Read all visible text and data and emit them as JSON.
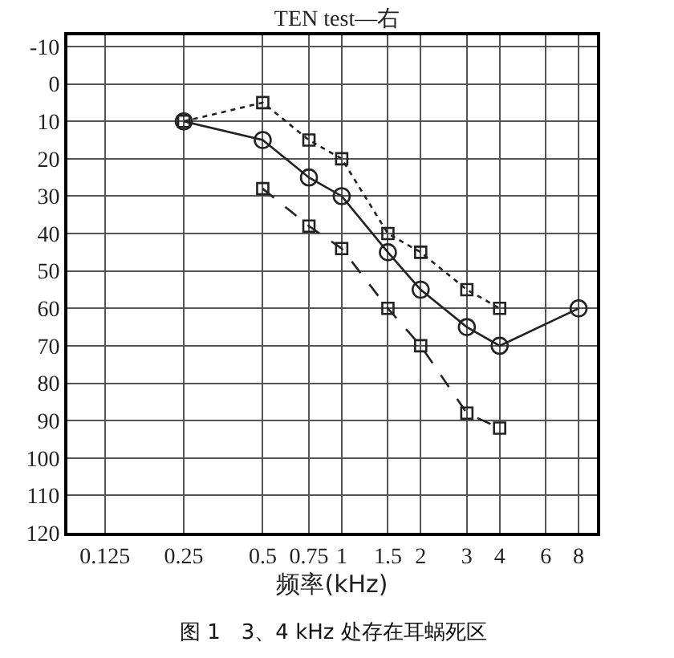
{
  "chart_data": {
    "type": "line",
    "title": "TEN test—右",
    "xlabel": "频率(kHz)",
    "annotations": [
      "图 1　3、4 kHz 处存在耳蜗死区"
    ],
    "log": "x",
    "grid": true,
    "xlim": [
      0.09,
      9.4
    ],
    "xticks": [
      0.125,
      0.25,
      0.5,
      0.75,
      1,
      1.5,
      2,
      3,
      4,
      6,
      8
    ],
    "ylim": [
      120,
      -13
    ],
    "yticks": [
      -10,
      0,
      10,
      20,
      30,
      40,
      50,
      60,
      70,
      80,
      90,
      100,
      110,
      120
    ],
    "series": [
      {
        "color": "#222222",
        "marker": "circle",
        "line_style": "solid",
        "x": [
          0.25,
          0.5,
          0.75,
          1,
          1.5,
          2,
          3,
          4,
          8
        ],
        "values": [
          10,
          15,
          25,
          30,
          45,
          55,
          65,
          70,
          60
        ]
      },
      {
        "color": "#222222",
        "marker": "square",
        "line_style": "dotted",
        "x": [
          0.25,
          0.5,
          0.75,
          1,
          1.5,
          2,
          3,
          4
        ],
        "values": [
          10,
          5,
          15,
          20,
          40,
          45,
          55,
          60
        ]
      },
      {
        "color": "#222222",
        "marker": "square",
        "line_style": "dashed",
        "x": [
          0.5,
          0.75,
          1,
          1.5,
          2,
          3,
          4
        ],
        "values": [
          28,
          38,
          44,
          60,
          70,
          88,
          92
        ]
      }
    ]
  }
}
